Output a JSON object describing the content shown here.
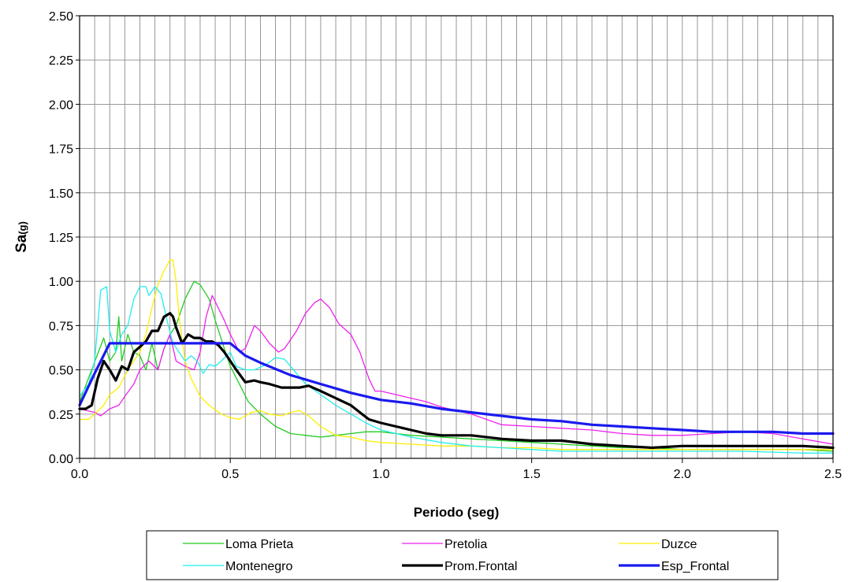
{
  "chart_data": {
    "type": "line",
    "xlabel": "Periodo (seg)",
    "ylabel_main": "Sa",
    "ylabel_sub": "(g)",
    "xlim": [
      0,
      2.5
    ],
    "ylim": [
      0,
      2.5
    ],
    "x_ticks": [
      "0.0",
      "0.5",
      "1.0",
      "1.5",
      "2.0",
      "2.5"
    ],
    "x_tick_values": [
      0,
      0.5,
      1.0,
      1.5,
      2.0,
      2.5
    ],
    "y_ticks": [
      "0.00",
      "0.25",
      "0.50",
      "0.75",
      "1.00",
      "1.25",
      "1.50",
      "1.75",
      "2.00",
      "2.25",
      "2.50"
    ],
    "y_tick_values": [
      0,
      0.25,
      0.5,
      0.75,
      1.0,
      1.25,
      1.5,
      1.75,
      2.0,
      2.25,
      2.5
    ],
    "grid": "vertical every 0.05 s, horizontal at major y ticks",
    "legend_placement": "bottom",
    "series": [
      {
        "name": "Loma Prieta",
        "color": "#22cc22",
        "width": 1.3,
        "points": [
          [
            0,
            0.32
          ],
          [
            0.04,
            0.5
          ],
          [
            0.08,
            0.68
          ],
          [
            0.1,
            0.55
          ],
          [
            0.12,
            0.6
          ],
          [
            0.13,
            0.8
          ],
          [
            0.14,
            0.55
          ],
          [
            0.16,
            0.7
          ],
          [
            0.18,
            0.6
          ],
          [
            0.2,
            0.58
          ],
          [
            0.22,
            0.5
          ],
          [
            0.24,
            0.65
          ],
          [
            0.26,
            0.5
          ],
          [
            0.28,
            0.62
          ],
          [
            0.3,
            0.7
          ],
          [
            0.32,
            0.75
          ],
          [
            0.35,
            0.9
          ],
          [
            0.38,
            1.0
          ],
          [
            0.4,
            0.98
          ],
          [
            0.43,
            0.9
          ],
          [
            0.45,
            0.78
          ],
          [
            0.48,
            0.62
          ],
          [
            0.5,
            0.52
          ],
          [
            0.53,
            0.42
          ],
          [
            0.56,
            0.32
          ],
          [
            0.6,
            0.25
          ],
          [
            0.65,
            0.18
          ],
          [
            0.7,
            0.14
          ],
          [
            0.75,
            0.13
          ],
          [
            0.8,
            0.12
          ],
          [
            0.85,
            0.13
          ],
          [
            0.9,
            0.14
          ],
          [
            0.95,
            0.15
          ],
          [
            1.0,
            0.15
          ],
          [
            1.1,
            0.13
          ],
          [
            1.2,
            0.12
          ],
          [
            1.3,
            0.11
          ],
          [
            1.4,
            0.1
          ],
          [
            1.5,
            0.09
          ],
          [
            1.6,
            0.08
          ],
          [
            1.7,
            0.07
          ],
          [
            1.8,
            0.06
          ],
          [
            1.9,
            0.06
          ],
          [
            2.0,
            0.05
          ],
          [
            2.2,
            0.05
          ],
          [
            2.4,
            0.05
          ],
          [
            2.5,
            0.04
          ]
        ]
      },
      {
        "name": "Pretolia",
        "color": "#ee22ee",
        "width": 1.3,
        "points": [
          [
            0,
            0.28
          ],
          [
            0.05,
            0.26
          ],
          [
            0.07,
            0.24
          ],
          [
            0.1,
            0.28
          ],
          [
            0.13,
            0.3
          ],
          [
            0.15,
            0.35
          ],
          [
            0.18,
            0.42
          ],
          [
            0.2,
            0.5
          ],
          [
            0.23,
            0.55
          ],
          [
            0.26,
            0.5
          ],
          [
            0.28,
            0.62
          ],
          [
            0.3,
            0.7
          ],
          [
            0.32,
            0.55
          ],
          [
            0.35,
            0.52
          ],
          [
            0.38,
            0.5
          ],
          [
            0.4,
            0.6
          ],
          [
            0.42,
            0.8
          ],
          [
            0.44,
            0.92
          ],
          [
            0.46,
            0.85
          ],
          [
            0.48,
            0.78
          ],
          [
            0.5,
            0.7
          ],
          [
            0.53,
            0.6
          ],
          [
            0.55,
            0.62
          ],
          [
            0.58,
            0.75
          ],
          [
            0.6,
            0.72
          ],
          [
            0.63,
            0.65
          ],
          [
            0.66,
            0.6
          ],
          [
            0.68,
            0.62
          ],
          [
            0.72,
            0.72
          ],
          [
            0.75,
            0.82
          ],
          [
            0.78,
            0.88
          ],
          [
            0.8,
            0.9
          ],
          [
            0.83,
            0.85
          ],
          [
            0.86,
            0.76
          ],
          [
            0.9,
            0.7
          ],
          [
            0.93,
            0.6
          ],
          [
            0.96,
            0.45
          ],
          [
            0.98,
            0.38
          ],
          [
            1.0,
            0.38
          ],
          [
            1.05,
            0.36
          ],
          [
            1.1,
            0.34
          ],
          [
            1.15,
            0.32
          ],
          [
            1.2,
            0.29
          ],
          [
            1.25,
            0.27
          ],
          [
            1.3,
            0.25
          ],
          [
            1.35,
            0.22
          ],
          [
            1.4,
            0.19
          ],
          [
            1.5,
            0.18
          ],
          [
            1.6,
            0.17
          ],
          [
            1.7,
            0.16
          ],
          [
            1.8,
            0.14
          ],
          [
            1.9,
            0.13
          ],
          [
            2.0,
            0.13
          ],
          [
            2.1,
            0.14
          ],
          [
            2.2,
            0.15
          ],
          [
            2.3,
            0.14
          ],
          [
            2.4,
            0.11
          ],
          [
            2.5,
            0.08
          ]
        ]
      },
      {
        "name": "Duzce",
        "color": "#ffee00",
        "width": 1.3,
        "points": [
          [
            0,
            0.22
          ],
          [
            0.03,
            0.22
          ],
          [
            0.05,
            0.25
          ],
          [
            0.08,
            0.3
          ],
          [
            0.1,
            0.36
          ],
          [
            0.13,
            0.4
          ],
          [
            0.16,
            0.5
          ],
          [
            0.18,
            0.55
          ],
          [
            0.2,
            0.6
          ],
          [
            0.22,
            0.7
          ],
          [
            0.24,
            0.85
          ],
          [
            0.26,
            0.98
          ],
          [
            0.28,
            1.06
          ],
          [
            0.3,
            1.12
          ],
          [
            0.31,
            1.12
          ],
          [
            0.32,
            1.0
          ],
          [
            0.33,
            0.8
          ],
          [
            0.35,
            0.55
          ],
          [
            0.37,
            0.45
          ],
          [
            0.4,
            0.35
          ],
          [
            0.43,
            0.3
          ],
          [
            0.47,
            0.25
          ],
          [
            0.5,
            0.23
          ],
          [
            0.53,
            0.22
          ],
          [
            0.57,
            0.26
          ],
          [
            0.6,
            0.27
          ],
          [
            0.63,
            0.25
          ],
          [
            0.67,
            0.24
          ],
          [
            0.7,
            0.26
          ],
          [
            0.73,
            0.27
          ],
          [
            0.76,
            0.24
          ],
          [
            0.8,
            0.18
          ],
          [
            0.85,
            0.13
          ],
          [
            0.9,
            0.12
          ],
          [
            0.95,
            0.1
          ],
          [
            1.0,
            0.09
          ],
          [
            1.1,
            0.08
          ],
          [
            1.2,
            0.07
          ],
          [
            1.3,
            0.07
          ],
          [
            1.4,
            0.06
          ],
          [
            1.5,
            0.06
          ],
          [
            1.6,
            0.05
          ],
          [
            1.8,
            0.05
          ],
          [
            2.0,
            0.05
          ],
          [
            2.2,
            0.05
          ],
          [
            2.4,
            0.05
          ],
          [
            2.5,
            0.05
          ]
        ]
      },
      {
        "name": "Montenegro",
        "color": "#22eeee",
        "width": 1.3,
        "points": [
          [
            0,
            0.35
          ],
          [
            0.03,
            0.42
          ],
          [
            0.05,
            0.55
          ],
          [
            0.07,
            0.95
          ],
          [
            0.09,
            0.97
          ],
          [
            0.1,
            0.72
          ],
          [
            0.12,
            0.6
          ],
          [
            0.14,
            0.7
          ],
          [
            0.16,
            0.75
          ],
          [
            0.18,
            0.9
          ],
          [
            0.2,
            0.97
          ],
          [
            0.22,
            0.97
          ],
          [
            0.23,
            0.92
          ],
          [
            0.25,
            0.97
          ],
          [
            0.27,
            0.93
          ],
          [
            0.29,
            0.78
          ],
          [
            0.31,
            0.65
          ],
          [
            0.33,
            0.6
          ],
          [
            0.35,
            0.55
          ],
          [
            0.37,
            0.58
          ],
          [
            0.39,
            0.55
          ],
          [
            0.41,
            0.48
          ],
          [
            0.43,
            0.53
          ],
          [
            0.45,
            0.52
          ],
          [
            0.47,
            0.55
          ],
          [
            0.5,
            0.6
          ],
          [
            0.52,
            0.52
          ],
          [
            0.55,
            0.5
          ],
          [
            0.58,
            0.5
          ],
          [
            0.62,
            0.53
          ],
          [
            0.65,
            0.57
          ],
          [
            0.68,
            0.56
          ],
          [
            0.72,
            0.48
          ],
          [
            0.75,
            0.42
          ],
          [
            0.8,
            0.36
          ],
          [
            0.85,
            0.3
          ],
          [
            0.9,
            0.25
          ],
          [
            0.95,
            0.2
          ],
          [
            1.0,
            0.16
          ],
          [
            1.1,
            0.12
          ],
          [
            1.2,
            0.09
          ],
          [
            1.3,
            0.07
          ],
          [
            1.4,
            0.06
          ],
          [
            1.5,
            0.05
          ],
          [
            1.6,
            0.04
          ],
          [
            1.7,
            0.04
          ],
          [
            1.8,
            0.04
          ],
          [
            1.9,
            0.04
          ],
          [
            2.0,
            0.04
          ],
          [
            2.2,
            0.04
          ],
          [
            2.4,
            0.03
          ],
          [
            2.5,
            0.03
          ]
        ]
      },
      {
        "name": "Prom.Frontal",
        "color": "#000000",
        "width": 3.2,
        "points": [
          [
            0,
            0.28
          ],
          [
            0.02,
            0.28
          ],
          [
            0.04,
            0.3
          ],
          [
            0.06,
            0.45
          ],
          [
            0.08,
            0.55
          ],
          [
            0.1,
            0.5
          ],
          [
            0.12,
            0.44
          ],
          [
            0.14,
            0.52
          ],
          [
            0.16,
            0.5
          ],
          [
            0.18,
            0.6
          ],
          [
            0.2,
            0.63
          ],
          [
            0.22,
            0.66
          ],
          [
            0.24,
            0.72
          ],
          [
            0.26,
            0.72
          ],
          [
            0.28,
            0.8
          ],
          [
            0.3,
            0.82
          ],
          [
            0.31,
            0.8
          ],
          [
            0.32,
            0.74
          ],
          [
            0.34,
            0.65
          ],
          [
            0.36,
            0.7
          ],
          [
            0.38,
            0.68
          ],
          [
            0.4,
            0.68
          ],
          [
            0.42,
            0.66
          ],
          [
            0.44,
            0.66
          ],
          [
            0.46,
            0.64
          ],
          [
            0.48,
            0.6
          ],
          [
            0.5,
            0.55
          ],
          [
            0.52,
            0.5
          ],
          [
            0.55,
            0.43
          ],
          [
            0.58,
            0.44
          ],
          [
            0.6,
            0.43
          ],
          [
            0.63,
            0.42
          ],
          [
            0.67,
            0.4
          ],
          [
            0.7,
            0.4
          ],
          [
            0.73,
            0.4
          ],
          [
            0.76,
            0.41
          ],
          [
            0.8,
            0.38
          ],
          [
            0.85,
            0.34
          ],
          [
            0.9,
            0.3
          ],
          [
            0.93,
            0.26
          ],
          [
            0.96,
            0.22
          ],
          [
            1.0,
            0.2
          ],
          [
            1.05,
            0.18
          ],
          [
            1.1,
            0.16
          ],
          [
            1.15,
            0.14
          ],
          [
            1.2,
            0.13
          ],
          [
            1.3,
            0.13
          ],
          [
            1.4,
            0.11
          ],
          [
            1.5,
            0.1
          ],
          [
            1.6,
            0.1
          ],
          [
            1.7,
            0.08
          ],
          [
            1.8,
            0.07
          ],
          [
            1.9,
            0.06
          ],
          [
            2.0,
            0.07
          ],
          [
            2.1,
            0.07
          ],
          [
            2.2,
            0.07
          ],
          [
            2.3,
            0.07
          ],
          [
            2.4,
            0.07
          ],
          [
            2.5,
            0.06
          ]
        ]
      },
      {
        "name": "Esp_Frontal",
        "color": "#1a1aee",
        "width": 3.2,
        "points": [
          [
            0,
            0.3
          ],
          [
            0.05,
            0.48
          ],
          [
            0.1,
            0.65
          ],
          [
            0.5,
            0.65
          ],
          [
            0.55,
            0.58
          ],
          [
            0.6,
            0.54
          ],
          [
            0.7,
            0.47
          ],
          [
            0.8,
            0.42
          ],
          [
            0.9,
            0.37
          ],
          [
            1.0,
            0.33
          ],
          [
            1.1,
            0.31
          ],
          [
            1.2,
            0.28
          ],
          [
            1.3,
            0.26
          ],
          [
            1.4,
            0.24
          ],
          [
            1.5,
            0.22
          ],
          [
            1.6,
            0.21
          ],
          [
            1.7,
            0.19
          ],
          [
            1.8,
            0.18
          ],
          [
            1.9,
            0.17
          ],
          [
            2.0,
            0.16
          ],
          [
            2.1,
            0.15
          ],
          [
            2.2,
            0.15
          ],
          [
            2.3,
            0.15
          ],
          [
            2.4,
            0.14
          ],
          [
            2.5,
            0.14
          ]
        ]
      }
    ]
  }
}
